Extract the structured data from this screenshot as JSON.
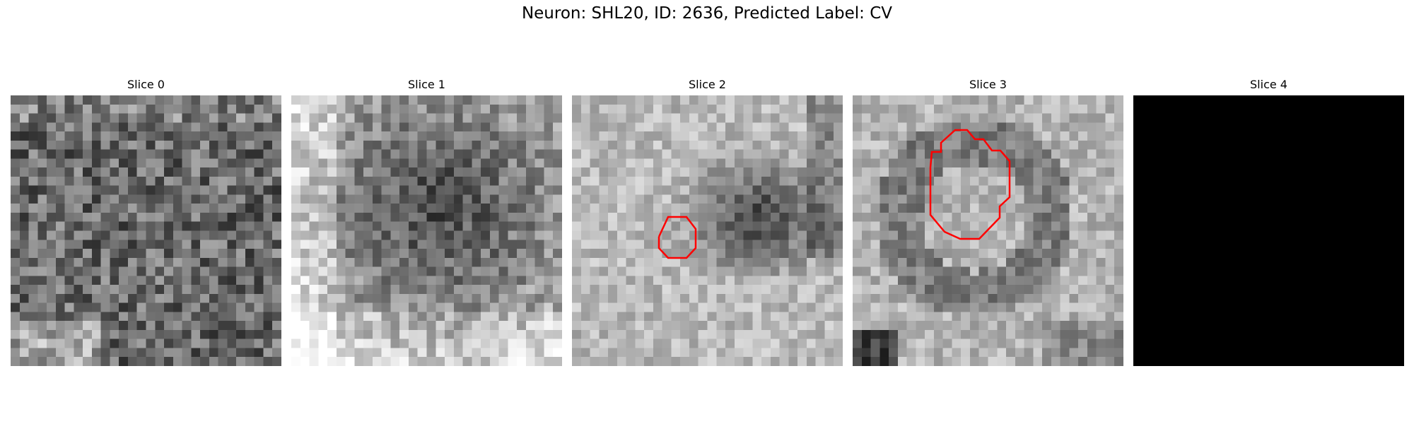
{
  "figure": {
    "title": "Neuron: SHL20, ID: 2636, Predicted Label: CV",
    "contour_color": "#ff0000"
  },
  "slices": [
    {
      "title": "Slice 0",
      "pattern": "noisy-dark",
      "contour": null
    },
    {
      "title": "Slice 1",
      "pattern": "dark-center-bright-left",
      "contour": null
    },
    {
      "title": "Slice 2",
      "pattern": "bright-field-dark-right",
      "contour": "small-octagon"
    },
    {
      "title": "Slice 3",
      "pattern": "bright-ring-dark-corner",
      "contour": "large-octagon"
    },
    {
      "title": "Slice 4",
      "pattern": "black",
      "contour": null
    }
  ]
}
